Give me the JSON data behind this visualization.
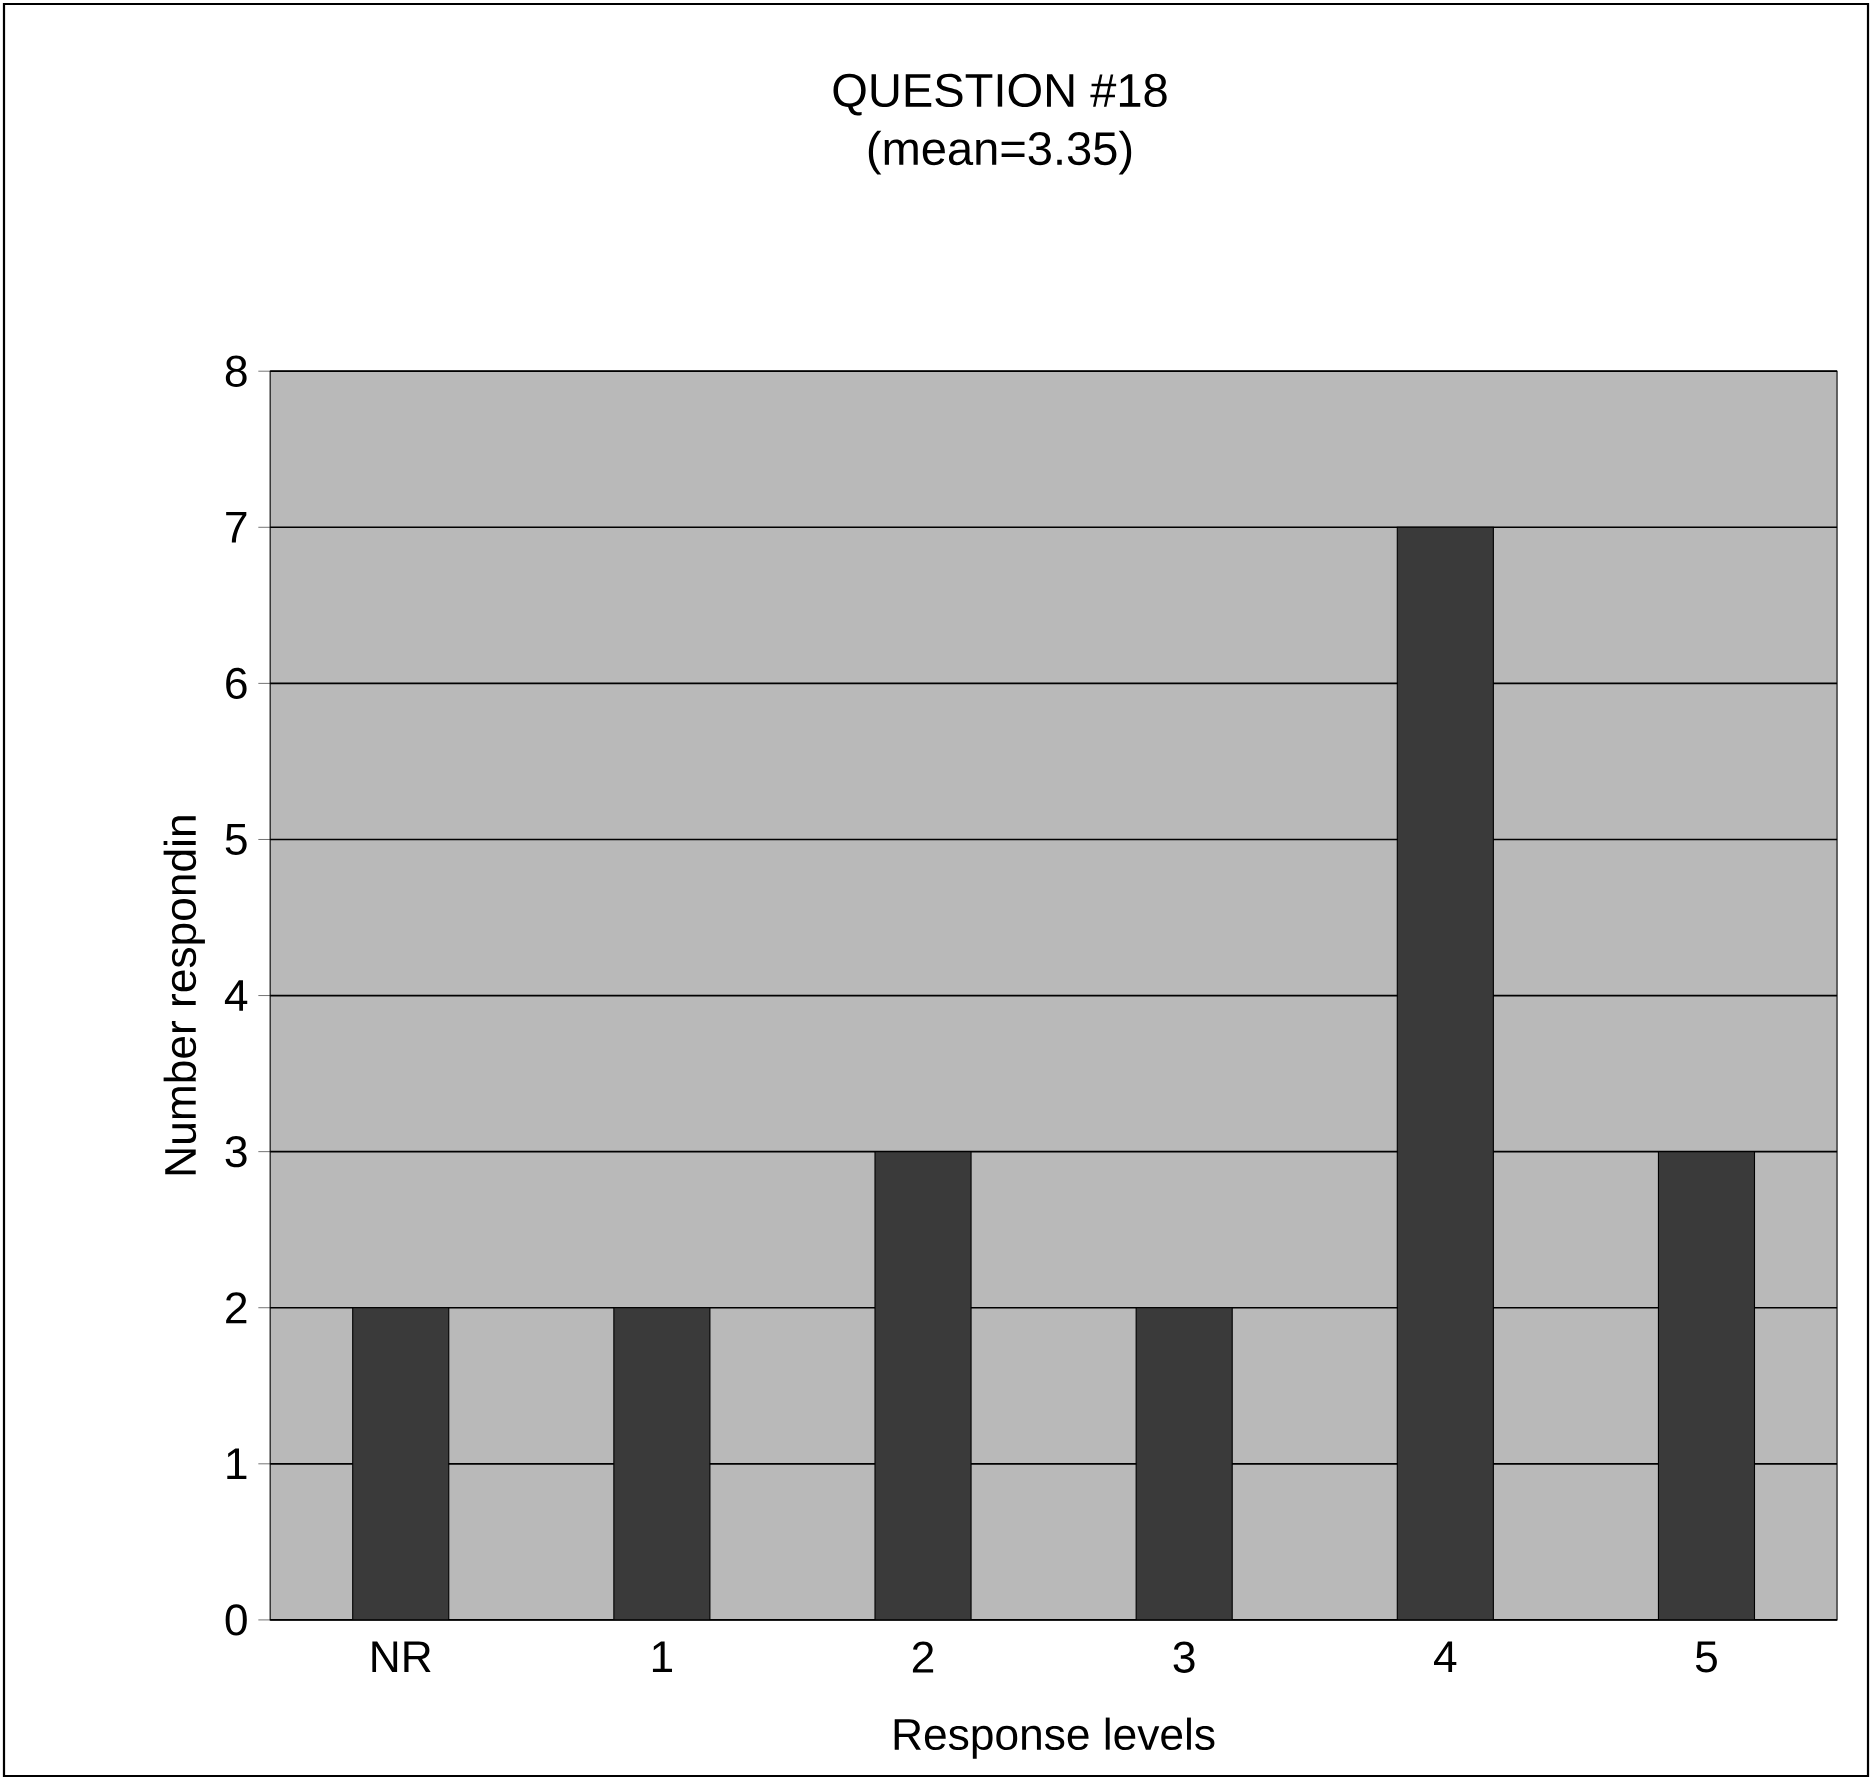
{
  "chart_data": {
    "type": "bar",
    "title": "QUESTION #18",
    "subtitle": "(mean=3.35)",
    "xlabel": "Response levels",
    "ylabel": "Number respondin",
    "categories": [
      "NR",
      "1",
      "2",
      "3",
      "4",
      "5"
    ],
    "values": [
      2,
      2,
      3,
      2,
      7,
      3
    ],
    "color": "#3a3a3a",
    "ylim": [
      0,
      8
    ],
    "yticks": [
      0,
      1,
      2,
      3,
      4,
      5,
      6,
      7,
      8
    ],
    "grid": "y"
  }
}
